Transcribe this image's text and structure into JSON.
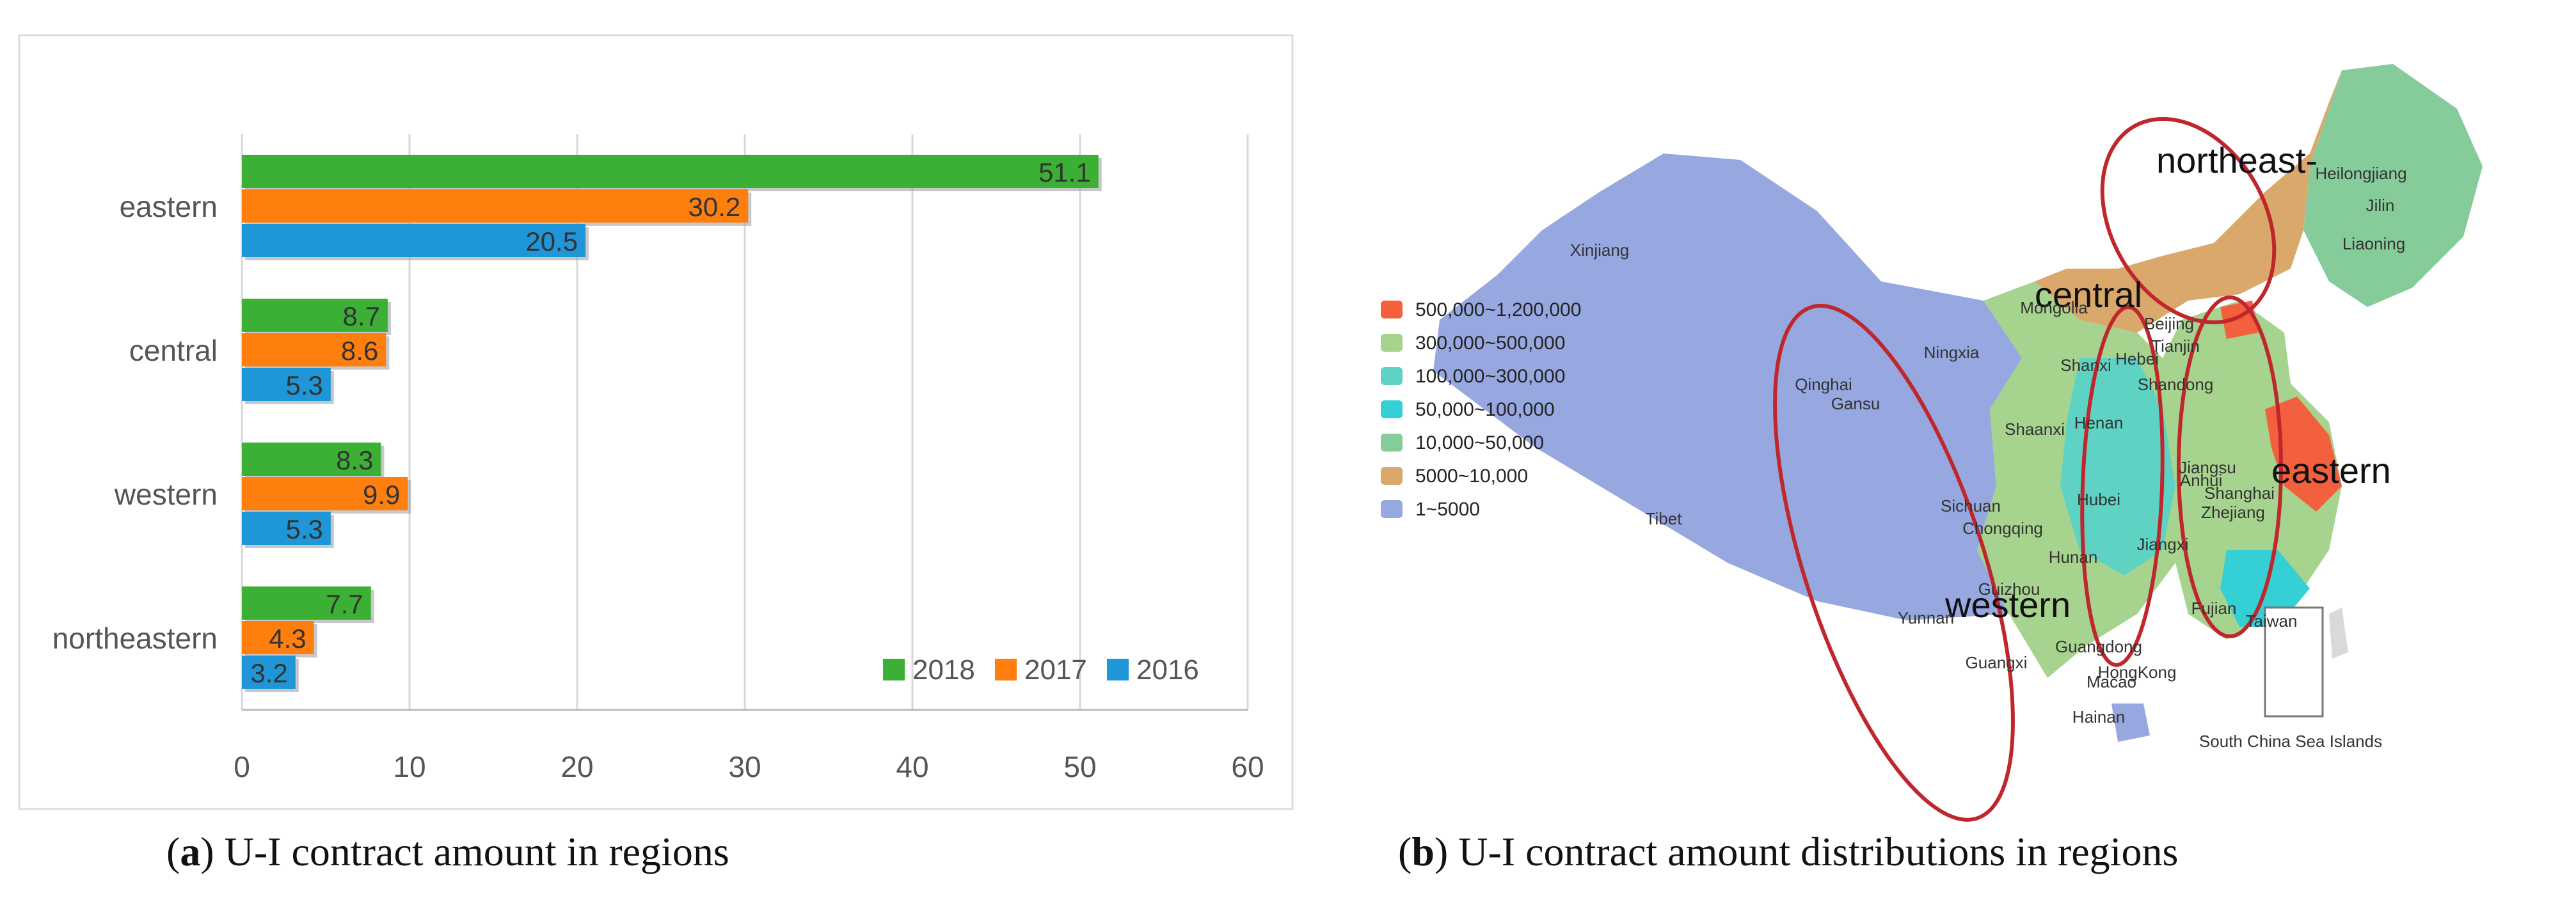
{
  "chart_data": {
    "type": "bar",
    "orientation": "horizontal",
    "categories": [
      "eastern",
      "central",
      "western",
      "northeastern"
    ],
    "series": [
      {
        "name": "2018",
        "color": "#3cb034",
        "values": [
          51.1,
          8.7,
          8.3,
          7.7
        ]
      },
      {
        "name": "2017",
        "color": "#ff7f0e",
        "values": [
          30.2,
          8.6,
          9.9,
          4.3
        ]
      },
      {
        "name": "2016",
        "color": "#1f96d8",
        "values": [
          20.5,
          5.3,
          5.3,
          3.2
        ]
      }
    ],
    "xlim": [
      0,
      60
    ],
    "xticks": [
      "0",
      "10",
      "20",
      "30",
      "40",
      "50",
      "60"
    ],
    "grid": true,
    "legend_position": "bottom-right",
    "data_labels": true
  },
  "captions": {
    "left_label": "a",
    "left_text": "U-I contract amount in regions",
    "right_label": "b",
    "right_text": "U-I contract amount distributions in regions"
  },
  "map": {
    "legend": [
      {
        "label": "500,000~1,200,000",
        "color": "#f2603e"
      },
      {
        "label": "300,000~500,000",
        "color": "#a6d38e"
      },
      {
        "label": "100,000~300,000",
        "color": "#5fd3c3"
      },
      {
        "label": "50,000~100,000",
        "color": "#35cfd6"
      },
      {
        "label": "10,000~50,000",
        "color": "#86cc9a"
      },
      {
        "label": "5000~10,000",
        "color": "#d9a86a"
      },
      {
        "label": "1~5000",
        "color": "#97a8e0"
      }
    ],
    "region_labels": {
      "northeast": "northeast-",
      "central": "central",
      "eastern": "eastern",
      "western": "western"
    },
    "provinces": [
      "Xinjiang",
      "Tibet",
      "Qinghai",
      "Gansu",
      "Ningxia",
      "Mongolia",
      "Beijing",
      "Tianjin",
      "Hebei",
      "Shanxi",
      "Shandong",
      "Shaanxi",
      "Henan",
      "Jiangsu",
      "Anhui",
      "Shanghai",
      "Zhejiang",
      "Hubei",
      "Sichuan",
      "Chongqing",
      "Hunan",
      "Jiangxi",
      "Guizhou",
      "Yunnan",
      "Fujian",
      "Taiwan",
      "Guangdong",
      "Guangxi",
      "HongKong",
      "Macao",
      "Hainan",
      "Heilongjiang",
      "Jilin",
      "Liaoning"
    ],
    "inset_label": "South China Sea Islands"
  }
}
